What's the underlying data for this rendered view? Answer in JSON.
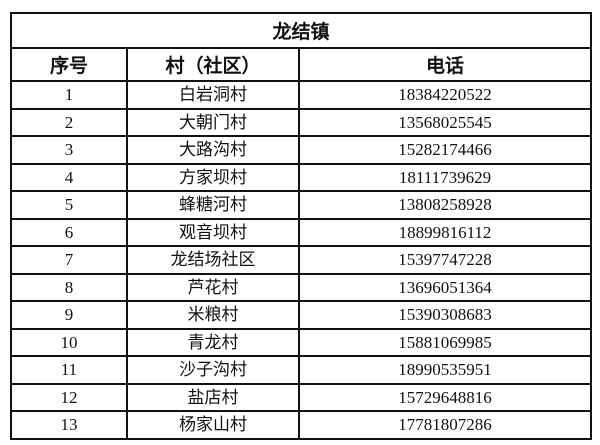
{
  "title": "龙结镇",
  "headers": [
    "序号",
    "村（社区）",
    "电话"
  ],
  "rows": [
    [
      "1",
      "白岩洞村",
      "18384220522"
    ],
    [
      "2",
      "大朝门村",
      "13568025545"
    ],
    [
      "3",
      "大路沟村",
      "15282174466"
    ],
    [
      "4",
      "方家坝村",
      "18111739629"
    ],
    [
      "5",
      "蜂糖河村",
      "13808258928"
    ],
    [
      "6",
      "观音坝村",
      "18899816112"
    ],
    [
      "7",
      "龙结场社区",
      "15397747228"
    ],
    [
      "8",
      "芦花村",
      "13696051364"
    ],
    [
      "9",
      "米粮村",
      "15390308683"
    ],
    [
      "10",
      "青龙村",
      "15881069985"
    ],
    [
      "11",
      "沙子沟村",
      "18990535951"
    ],
    [
      "12",
      "盐店村",
      "15729648816"
    ],
    [
      "13",
      "杨家山村",
      "17781807286"
    ]
  ]
}
